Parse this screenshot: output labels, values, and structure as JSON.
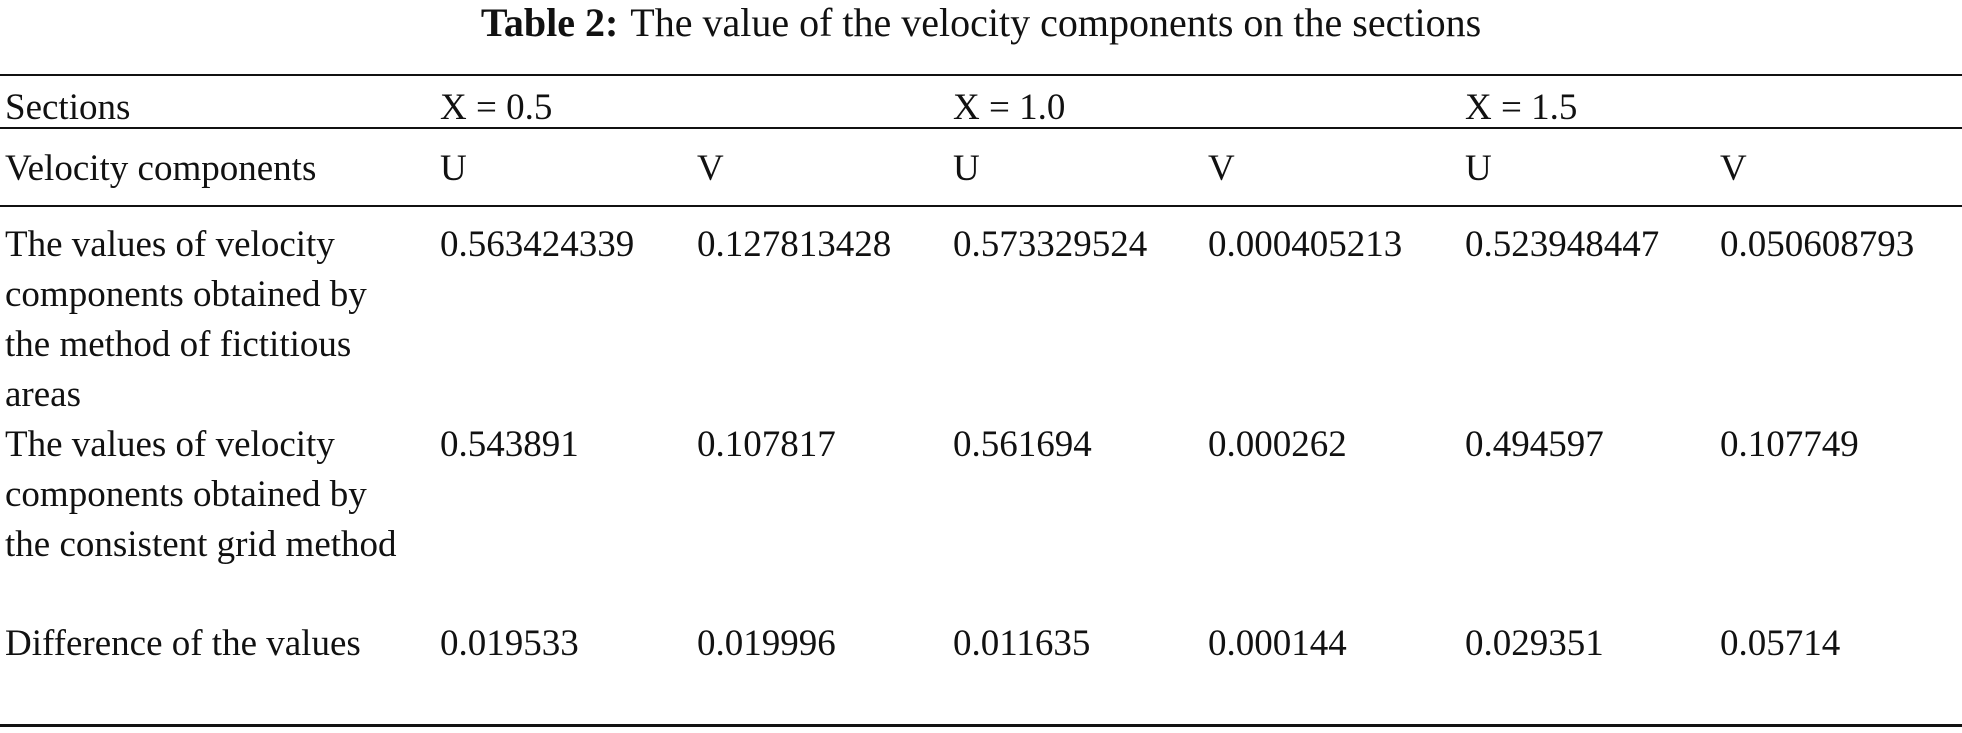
{
  "title": {
    "label": "Table 2:",
    "text": "The value of the velocity components on the sections"
  },
  "table": {
    "header": {
      "label": "Sections",
      "groups": [
        "X = 0.5",
        "X = 1.0",
        "X = 1.5"
      ]
    },
    "subheader": {
      "label": "Velocity components",
      "components": [
        "U",
        "V",
        "U",
        "V",
        "U",
        "V"
      ]
    },
    "rows": [
      [
        "The values of velocity components obtained by the method of fictitious areas",
        "0.563424339",
        "0.127813428",
        "0.573329524",
        "0.000405213",
        "0.523948447",
        "0.050608793"
      ],
      [
        "The values of velocity components obtained by the consistent grid method",
        "0.543891",
        "0.107817",
        "0.561694",
        "0.000262",
        "0.494597",
        "0.107749"
      ],
      [
        "Difference of the values",
        "0.019533",
        "0.019996",
        "0.011635",
        "0.000144",
        "0.029351",
        "0.05714"
      ]
    ]
  }
}
